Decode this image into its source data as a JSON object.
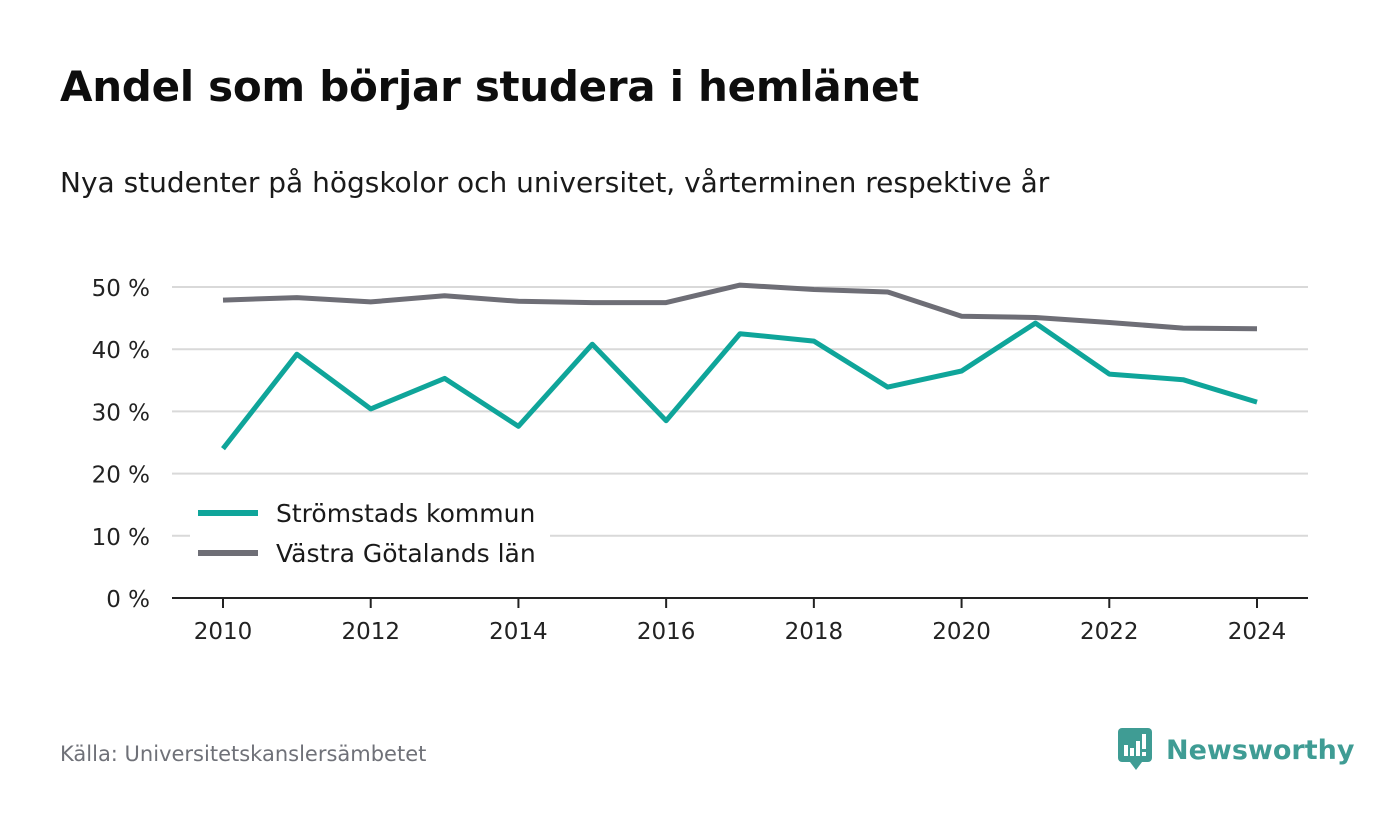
{
  "title": "Andel som börjar studera i hemlänet",
  "subtitle": "Nya studenter på högskolor och universitet, vårterminen respektive år",
  "source": "Källa: Universitetskanslersämbetet",
  "brand": {
    "name": "Newsworthy",
    "icon": "newsworthy-chart-bubble-icon",
    "color": "#3f9c94"
  },
  "chart_data": {
    "type": "line",
    "x": [
      2010,
      2011,
      2012,
      2013,
      2014,
      2015,
      2016,
      2017,
      2018,
      2019,
      2020,
      2021,
      2022,
      2023,
      2024
    ],
    "xticks": [
      2010,
      2012,
      2014,
      2016,
      2018,
      2020,
      2022,
      2024
    ],
    "xtick_labels": [
      "2010",
      "2012",
      "2014",
      "2016",
      "2018",
      "2020",
      "2022",
      "2024"
    ],
    "ylim": [
      0,
      50
    ],
    "yticks": [
      0,
      10,
      20,
      30,
      40,
      50
    ],
    "ytick_labels": [
      "0 %",
      "10 %",
      "20 %",
      "30 %",
      "40 %",
      "50 %"
    ],
    "grid": true,
    "legend_position": "bottom-left",
    "series": [
      {
        "name": "Strömstads kommun",
        "color": "#0fa59a",
        "values": [
          24.0,
          39.2,
          30.4,
          35.3,
          27.6,
          40.8,
          28.5,
          42.5,
          41.3,
          33.9,
          36.5,
          44.2,
          36.0,
          35.1,
          31.5
        ]
      },
      {
        "name": "Västra Götalands län",
        "color": "#6e6e76",
        "values": [
          47.9,
          48.3,
          47.6,
          48.6,
          47.7,
          47.5,
          47.5,
          50.3,
          49.6,
          49.2,
          45.3,
          45.1,
          44.3,
          43.4,
          43.3
        ]
      }
    ]
  }
}
